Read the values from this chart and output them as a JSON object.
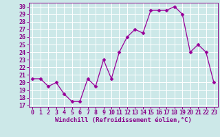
{
  "x": [
    0,
    1,
    2,
    3,
    4,
    5,
    6,
    7,
    8,
    9,
    10,
    11,
    12,
    13,
    14,
    15,
    16,
    17,
    18,
    19,
    20,
    21,
    22,
    23
  ],
  "y": [
    20.5,
    20.5,
    19.5,
    20.0,
    18.5,
    17.5,
    17.5,
    20.5,
    19.5,
    23.0,
    20.5,
    24.0,
    26.0,
    27.0,
    26.5,
    29.5,
    29.5,
    29.5,
    30.0,
    29.0,
    24.0,
    25.0,
    24.0,
    20.0
  ],
  "line_color": "#990099",
  "marker": "D",
  "marker_size": 2.5,
  "bg_color": "#cce8e8",
  "grid_color": "#ffffff",
  "xlabel": "Windchill (Refroidissement éolien,°C)",
  "ylabel_ticks": [
    17,
    18,
    19,
    20,
    21,
    22,
    23,
    24,
    25,
    26,
    27,
    28,
    29,
    30
  ],
  "ylim": [
    16.8,
    30.5
  ],
  "xlim": [
    -0.5,
    23.5
  ],
  "xlabel_fontsize": 6.5,
  "tick_fontsize": 6.0,
  "axis_label_color": "#880088",
  "tick_color": "#880088",
  "spine_color": "#880088",
  "line_width": 0.9
}
